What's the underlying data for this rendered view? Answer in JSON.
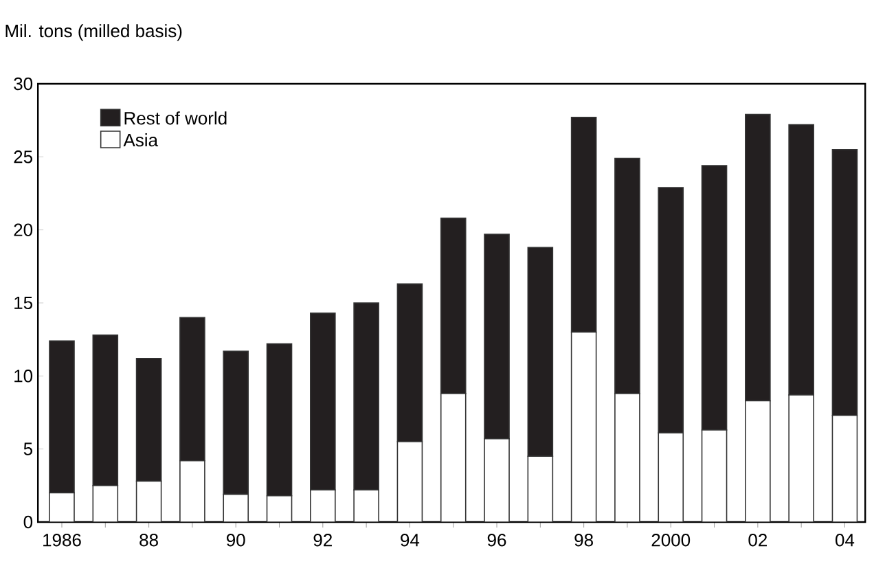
{
  "chart_data": {
    "type": "bar",
    "stacked": true,
    "ylabel": "Mil. tons (milled basis)",
    "categories": [
      "1986",
      null,
      "88",
      null,
      "90",
      null,
      "92",
      null,
      "94",
      null,
      "96",
      null,
      "98",
      null,
      "2000",
      null,
      "02",
      null,
      "04"
    ],
    "series": [
      {
        "name": "Asia",
        "color": "#ffffff",
        "values": [
          2.0,
          2.5,
          2.8,
          4.2,
          1.9,
          1.8,
          2.2,
          2.2,
          5.5,
          8.8,
          5.7,
          4.5,
          13.0,
          8.8,
          6.1,
          6.3,
          8.3,
          8.7,
          7.3
        ]
      },
      {
        "name": "Rest of world",
        "color": "#231f20",
        "values": [
          10.4,
          10.3,
          8.4,
          9.8,
          9.8,
          10.4,
          12.1,
          12.8,
          10.8,
          12.0,
          14.0,
          14.3,
          14.7,
          16.1,
          16.8,
          18.1,
          19.6,
          18.5,
          18.2
        ]
      }
    ],
    "ylim": [
      0,
      30
    ],
    "yticks": [
      0,
      5,
      10,
      15,
      20,
      25,
      30
    ],
    "legend": "top left",
    "grid": false
  }
}
